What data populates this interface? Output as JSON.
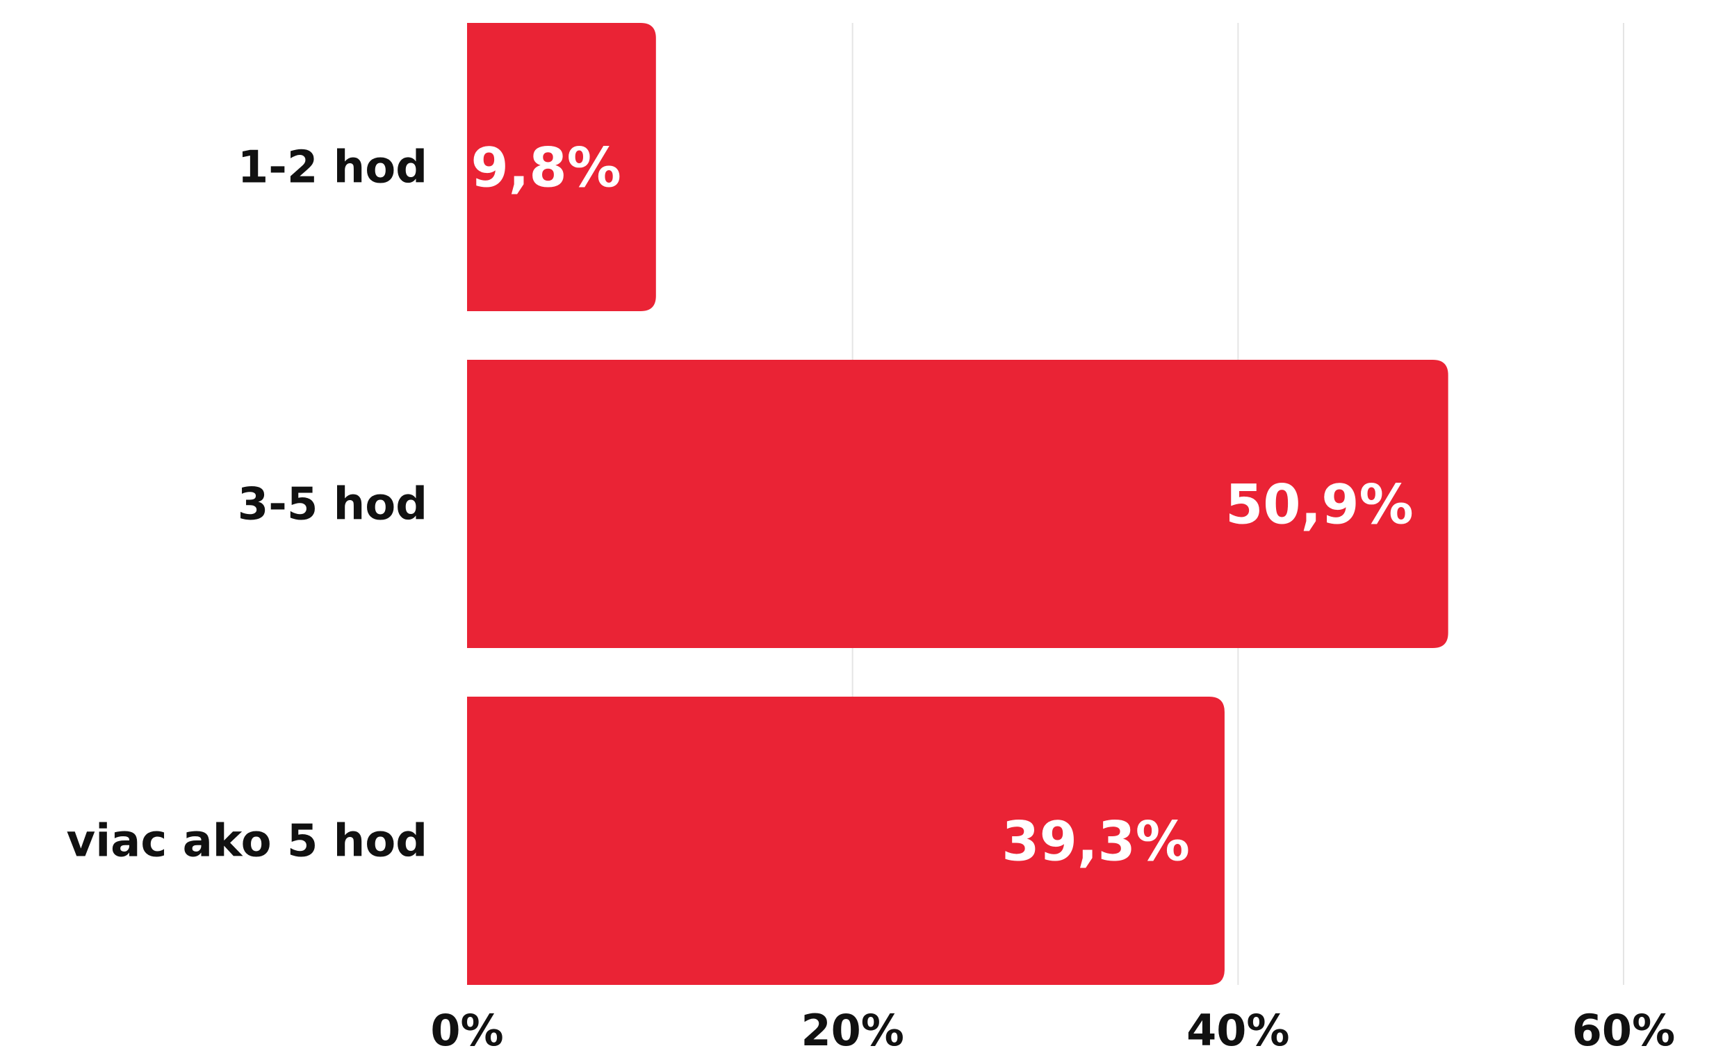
{
  "chart_data": {
    "type": "bar",
    "orientation": "horizontal",
    "categories": [
      "1-2 hod",
      "3-5 hod",
      "viac ako 5 hod"
    ],
    "values": [
      9.8,
      50.9,
      39.3
    ],
    "value_labels": [
      "9,8%",
      "50,9%",
      "39,3%"
    ],
    "xlim": [
      0,
      60
    ],
    "x_ticks": [
      0,
      20,
      40,
      60
    ],
    "x_tick_labels": [
      "0%",
      "20%",
      "40%",
      "60%"
    ],
    "grid": "vertical",
    "legend": "none",
    "colors": {
      "bar": "#EA2335",
      "grid": "#E5E5E5",
      "text": "#111111",
      "label_text": "#FFFFFF"
    }
  }
}
